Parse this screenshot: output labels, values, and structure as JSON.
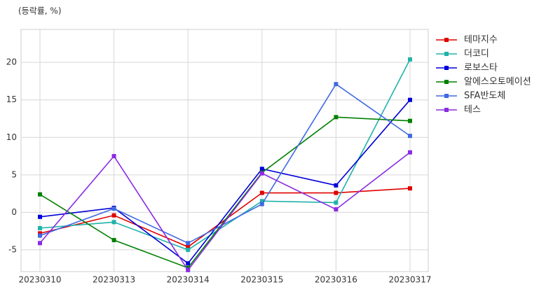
{
  "chart_data": {
    "type": "line",
    "y_label": "(등락률, %)",
    "categories": [
      "20230310",
      "20230313",
      "20230314",
      "20230315",
      "20230316",
      "20230317"
    ],
    "series": [
      {
        "name": "테마지수",
        "color": "#e00000",
        "values": [
          -2.8,
          -0.4,
          -4.6,
          2.6,
          2.6,
          3.2
        ]
      },
      {
        "name": "더코디",
        "color": "#20b2aa",
        "values": [
          -2.1,
          -1.3,
          -5.0,
          1.5,
          1.3,
          20.4
        ]
      },
      {
        "name": "로보스타",
        "color": "#0000d8",
        "values": [
          -0.6,
          0.6,
          -6.8,
          5.8,
          3.6,
          15.0
        ]
      },
      {
        "name": "알에스오토메이션",
        "color": "#008000",
        "values": [
          2.4,
          -3.7,
          -7.4,
          5.3,
          12.7,
          12.2
        ]
      },
      {
        "name": "SFA반도체",
        "color": "#4169e1",
        "values": [
          -3.1,
          0.5,
          -4.1,
          1.1,
          17.1,
          10.2
        ]
      },
      {
        "name": "테스",
        "color": "#8a2be2",
        "values": [
          -4.1,
          7.5,
          -7.7,
          5.2,
          0.4,
          8.0
        ]
      }
    ],
    "ylim": [
      -7.9,
      24.4
    ],
    "yticks": [
      -5,
      0,
      5,
      10,
      15,
      20
    ],
    "grid": true,
    "legend": "upper right outside"
  }
}
